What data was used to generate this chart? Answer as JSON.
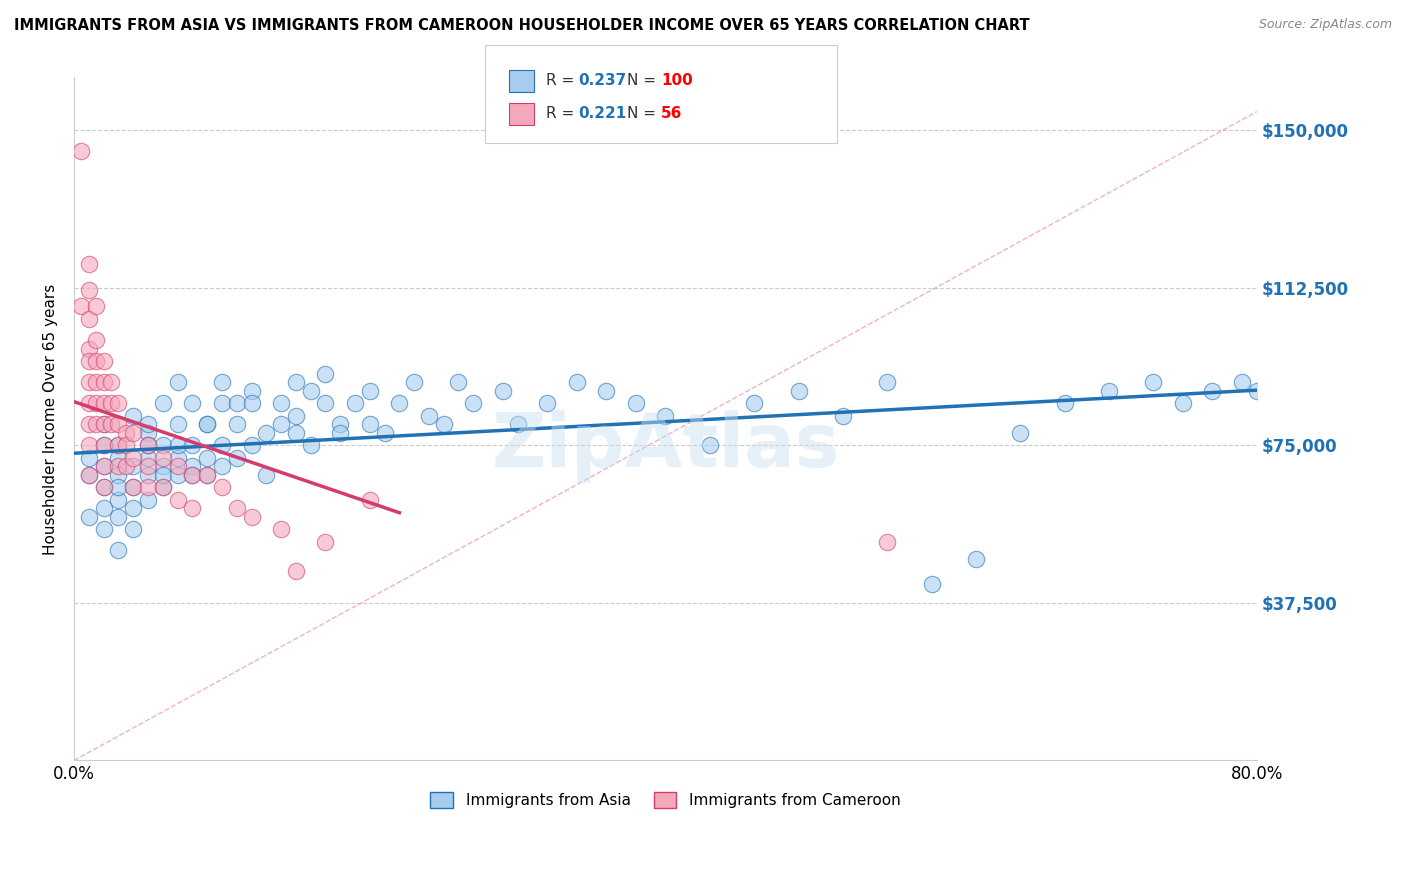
{
  "title": "IMMIGRANTS FROM ASIA VS IMMIGRANTS FROM CAMEROON HOUSEHOLDER INCOME OVER 65 YEARS CORRELATION CHART",
  "source": "Source: ZipAtlas.com",
  "ylabel": "Householder Income Over 65 years",
  "legend_label1": "Immigrants from Asia",
  "legend_label2": "Immigrants from Cameroon",
  "R1": 0.237,
  "N1": 100,
  "R2": 0.221,
  "N2": 56,
  "color_asia": "#a8ccee",
  "color_cameroon": "#f4a8bc",
  "color_asia_line": "#2171b5",
  "color_cameroon_line": "#d63b6e",
  "color_diag": "#e8a0b0",
  "xmin": 0.0,
  "xmax": 0.8,
  "ymin": 0,
  "ymax": 162500,
  "ytick_vals": [
    37500,
    75000,
    112500,
    150000
  ],
  "ytick_labels": [
    "$37,500",
    "$75,000",
    "$112,500",
    "$150,000"
  ],
  "watermark": "ZipAtlas",
  "asia_x": [
    0.01,
    0.01,
    0.01,
    0.02,
    0.02,
    0.02,
    0.02,
    0.02,
    0.02,
    0.03,
    0.03,
    0.03,
    0.03,
    0.03,
    0.03,
    0.03,
    0.04,
    0.04,
    0.04,
    0.04,
    0.04,
    0.05,
    0.05,
    0.05,
    0.05,
    0.05,
    0.05,
    0.06,
    0.06,
    0.06,
    0.06,
    0.06,
    0.07,
    0.07,
    0.07,
    0.07,
    0.07,
    0.08,
    0.08,
    0.08,
    0.08,
    0.09,
    0.09,
    0.09,
    0.09,
    0.1,
    0.1,
    0.1,
    0.1,
    0.11,
    0.11,
    0.11,
    0.12,
    0.12,
    0.12,
    0.13,
    0.13,
    0.14,
    0.14,
    0.15,
    0.15,
    0.15,
    0.16,
    0.16,
    0.17,
    0.17,
    0.18,
    0.18,
    0.19,
    0.2,
    0.2,
    0.21,
    0.22,
    0.23,
    0.24,
    0.25,
    0.26,
    0.27,
    0.29,
    0.3,
    0.32,
    0.34,
    0.36,
    0.38,
    0.4,
    0.43,
    0.46,
    0.49,
    0.52,
    0.55,
    0.58,
    0.61,
    0.64,
    0.67,
    0.7,
    0.73,
    0.75,
    0.77,
    0.79,
    0.8
  ],
  "asia_y": [
    68000,
    72000,
    58000,
    65000,
    80000,
    55000,
    75000,
    60000,
    70000,
    75000,
    62000,
    58000,
    68000,
    72000,
    65000,
    50000,
    82000,
    65000,
    70000,
    60000,
    55000,
    78000,
    72000,
    68000,
    75000,
    80000,
    62000,
    85000,
    70000,
    65000,
    75000,
    68000,
    90000,
    72000,
    68000,
    80000,
    75000,
    85000,
    75000,
    70000,
    68000,
    80000,
    72000,
    68000,
    80000,
    85000,
    75000,
    70000,
    90000,
    80000,
    72000,
    85000,
    88000,
    75000,
    85000,
    78000,
    68000,
    80000,
    85000,
    90000,
    82000,
    78000,
    88000,
    75000,
    92000,
    85000,
    80000,
    78000,
    85000,
    88000,
    80000,
    78000,
    85000,
    90000,
    82000,
    80000,
    90000,
    85000,
    88000,
    80000,
    85000,
    90000,
    88000,
    85000,
    82000,
    75000,
    85000,
    88000,
    82000,
    90000,
    42000,
    48000,
    78000,
    85000,
    88000,
    90000,
    85000,
    88000,
    90000,
    88000
  ],
  "cameroon_x": [
    0.005,
    0.005,
    0.01,
    0.01,
    0.01,
    0.01,
    0.01,
    0.01,
    0.01,
    0.01,
    0.01,
    0.01,
    0.015,
    0.015,
    0.015,
    0.015,
    0.015,
    0.015,
    0.02,
    0.02,
    0.02,
    0.02,
    0.02,
    0.02,
    0.02,
    0.025,
    0.025,
    0.025,
    0.03,
    0.03,
    0.03,
    0.03,
    0.035,
    0.035,
    0.035,
    0.04,
    0.04,
    0.04,
    0.05,
    0.05,
    0.05,
    0.06,
    0.06,
    0.07,
    0.07,
    0.08,
    0.08,
    0.09,
    0.1,
    0.11,
    0.12,
    0.14,
    0.15,
    0.17,
    0.2,
    0.55
  ],
  "cameroon_y": [
    145000,
    108000,
    118000,
    112000,
    105000,
    98000,
    95000,
    90000,
    85000,
    80000,
    75000,
    68000,
    108000,
    100000,
    95000,
    90000,
    85000,
    80000,
    95000,
    90000,
    85000,
    80000,
    75000,
    70000,
    65000,
    90000,
    85000,
    80000,
    85000,
    80000,
    75000,
    70000,
    78000,
    75000,
    70000,
    78000,
    72000,
    65000,
    75000,
    70000,
    65000,
    72000,
    65000,
    70000,
    62000,
    68000,
    60000,
    68000,
    65000,
    60000,
    58000,
    55000,
    45000,
    52000,
    62000,
    52000
  ]
}
